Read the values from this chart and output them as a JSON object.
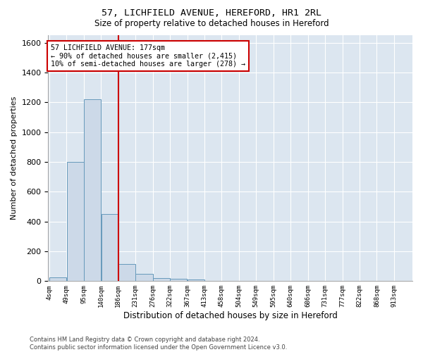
{
  "title": "57, LICHFIELD AVENUE, HEREFORD, HR1 2RL",
  "subtitle": "Size of property relative to detached houses in Hereford",
  "xlabel": "Distribution of detached houses by size in Hereford",
  "ylabel": "Number of detached properties",
  "bin_labels": [
    "4sqm",
    "49sqm",
    "95sqm",
    "140sqm",
    "186sqm",
    "231sqm",
    "276sqm",
    "322sqm",
    "367sqm",
    "413sqm",
    "458sqm",
    "504sqm",
    "549sqm",
    "595sqm",
    "640sqm",
    "686sqm",
    "731sqm",
    "777sqm",
    "822sqm",
    "868sqm",
    "913sqm"
  ],
  "bar_values": [
    25,
    800,
    1220,
    450,
    115,
    50,
    20,
    15,
    10,
    0,
    0,
    0,
    0,
    0,
    0,
    0,
    0,
    0,
    0,
    0,
    0
  ],
  "bar_color": "#ccd9e8",
  "bar_edge_color": "#6699bb",
  "vline_color": "#cc0000",
  "annotation_line1": "57 LICHFIELD AVENUE: 177sqm",
  "annotation_line2": "← 90% of detached houses are smaller (2,415)",
  "annotation_line3": "10% of semi-detached houses are larger (278) →",
  "annotation_box_color": "#cc0000",
  "ylim": [
    0,
    1650
  ],
  "yticks": [
    0,
    200,
    400,
    600,
    800,
    1000,
    1200,
    1400,
    1600
  ],
  "footnote_line1": "Contains HM Land Registry data © Crown copyright and database right 2024.",
  "footnote_line2": "Contains public sector information licensed under the Open Government Licence v3.0.",
  "fig_bg_color": "#ffffff",
  "plot_bg_color": "#dce6f0",
  "grid_color": "#ffffff",
  "bin_width": 45,
  "n_bins": 21,
  "vline_bin_edge": 4
}
